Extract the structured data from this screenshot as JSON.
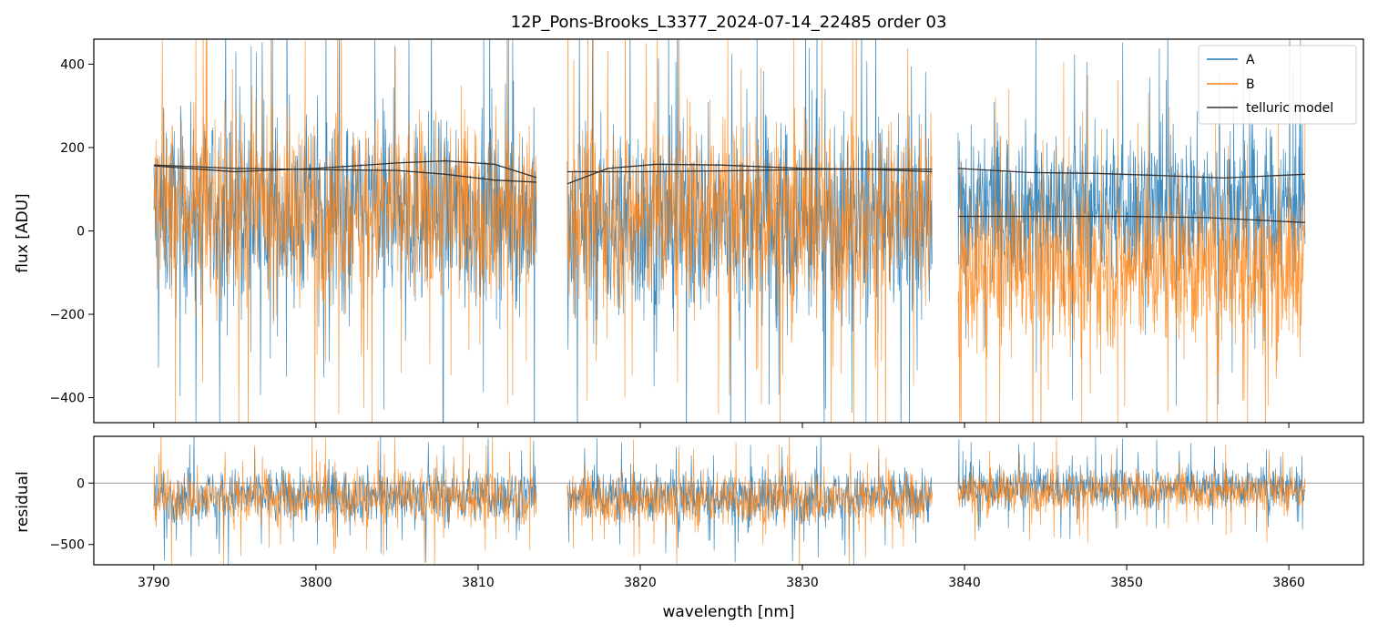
{
  "title": "12P_Pons-Brooks_L3377_2024-07-14_22485  order 03",
  "colors": {
    "A": "#1f77b4",
    "B": "#ff7f0e",
    "telluric": "#333333",
    "residual_zero": "#777777"
  },
  "chart_data": [
    {
      "name": "flux",
      "type": "line",
      "ylabel": "flux [ADU]",
      "xlim": [
        3786.3,
        3864.6
      ],
      "ylim": [
        -460,
        460
      ],
      "yticks": [
        -400,
        -200,
        0,
        200,
        400
      ],
      "ytick_labels": [
        "−400",
        "−200",
        "0",
        "200",
        "400"
      ],
      "legend": {
        "placement": "top-right",
        "entries": [
          "A",
          "B",
          "telluric model"
        ]
      },
      "segments": [
        {
          "x_start": 3790.0,
          "x_end": 3813.6,
          "A_center": 40,
          "A_spread": 270,
          "B_center": 55,
          "B_spread": 260
        },
        {
          "x_start": 3815.5,
          "x_end": 3838.0,
          "A_center": 20,
          "A_spread": 280,
          "B_center": 40,
          "B_spread": 270
        },
        {
          "x_start": 3839.6,
          "x_end": 3861.0,
          "A_center": 60,
          "A_spread": 220,
          "B_center": -90,
          "B_spread": 230
        }
      ],
      "series": [
        {
          "name": "A",
          "style": "noisy line",
          "values": "noisy high-variance flux spanning the full y range in each segment"
        },
        {
          "name": "B",
          "style": "noisy line",
          "values": "noisy high-variance flux; in the third segment offset downward"
        },
        {
          "name": "telluric model",
          "curves": [
            {
              "x": [
                3790,
                3795,
                3800,
                3805,
                3808,
                3811,
                3813.6
              ],
              "y": [
                158,
                150,
                147,
                145,
                136,
                122,
                117
              ]
            },
            {
              "x": [
                3790,
                3795,
                3800,
                3805,
                3808,
                3811,
                3813.6
              ],
              "y": [
                156,
                142,
                150,
                163,
                168,
                160,
                128
              ]
            },
            {
              "x": [
                3815.5,
                3818,
                3821,
                3825,
                3830,
                3834,
                3838
              ],
              "y": [
                113,
                150,
                160,
                158,
                150,
                148,
                142
              ]
            },
            {
              "x": [
                3815.5,
                3820,
                3825,
                3830,
                3834,
                3838
              ],
              "y": [
                142,
                142,
                144,
                147,
                149,
                148
              ]
            },
            {
              "x": [
                3839.6,
                3844,
                3848,
                3852,
                3856,
                3861
              ],
              "y": [
                150,
                140,
                138,
                133,
                127,
                136
              ]
            },
            {
              "x": [
                3839.6,
                3845,
                3850,
                3855,
                3861
              ],
              "y": [
                35,
                35,
                35,
                32,
                20
              ]
            }
          ]
        }
      ]
    },
    {
      "name": "residual",
      "type": "line",
      "ylabel": "residual",
      "xlabel": "wavelength [nm]",
      "xlim": [
        3786.3,
        3864.6
      ],
      "ylim": [
        -665,
        380
      ],
      "yticks": [
        -500,
        0
      ],
      "ytick_labels": [
        "−500",
        "0"
      ],
      "xticks": [
        3790,
        3800,
        3810,
        3820,
        3830,
        3840,
        3850,
        3860
      ],
      "xtick_labels": [
        "3790",
        "3800",
        "3810",
        "3820",
        "3830",
        "3840",
        "3850",
        "3860"
      ],
      "zero_line": 0,
      "segments": [
        {
          "x_start": 3790.0,
          "x_end": 3813.6,
          "center": -120,
          "spread": 260
        },
        {
          "x_start": 3815.5,
          "x_end": 3838.0,
          "center": -130,
          "spread": 260
        },
        {
          "x_start": 3839.6,
          "x_end": 3861.0,
          "center": -60,
          "spread": 200
        }
      ]
    }
  ]
}
